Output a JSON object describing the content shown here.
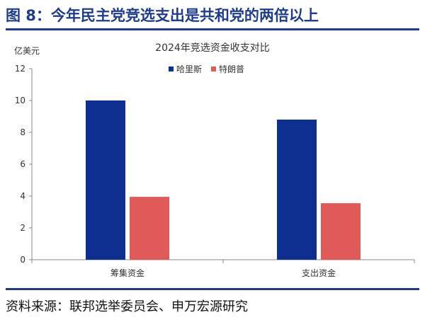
{
  "figure": {
    "title": "图 8：今年民主党竞选支出是共和党的两倍以上",
    "source": "资料来源：联邦选举委员会、申万宏源研究"
  },
  "chart_data": {
    "type": "bar",
    "title": "2024年竞选资金收支对比",
    "ylabel": "亿美元",
    "xlabel": "",
    "categories": [
      "筹集资金",
      "支出资金"
    ],
    "series": [
      {
        "name": "哈里斯",
        "color": "#0d2f8f",
        "values": [
          10.0,
          8.8
        ]
      },
      {
        "name": "特朗普",
        "color": "#e05a5a",
        "values": [
          3.95,
          3.55
        ]
      }
    ],
    "ylim": [
      0,
      12
    ],
    "yticks": [
      0,
      2,
      4,
      6,
      8,
      10,
      12
    ],
    "grid": false,
    "legend": "top-center"
  }
}
